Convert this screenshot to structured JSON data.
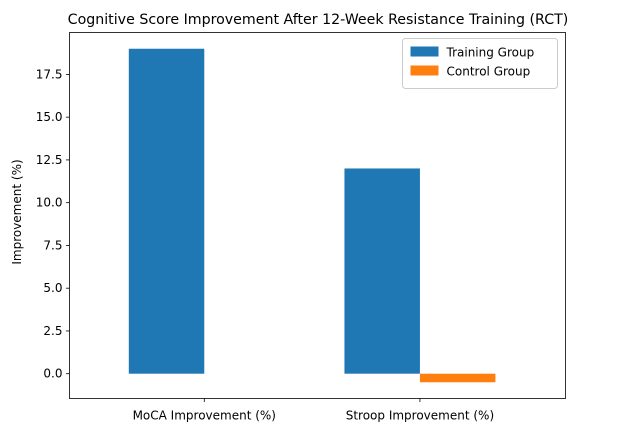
{
  "chart_data": {
    "type": "bar",
    "title": "Cognitive Score Improvement After 12-Week Resistance Training (RCT)",
    "xlabel": "",
    "ylabel": "Improvement (%)",
    "categories": [
      "MoCA Improvement (%)",
      "Stroop Improvement (%)"
    ],
    "series": [
      {
        "name": "Training Group",
        "values": [
          19.0,
          12.0
        ],
        "color": "#1f77b4"
      },
      {
        "name": "Control Group",
        "values": [
          0.0,
          -0.5
        ],
        "color": "#ff7f0e"
      }
    ],
    "ylim": [
      -1.45,
      19.95
    ],
    "yticks": [
      0.0,
      2.5,
      5.0,
      7.5,
      10.0,
      12.5,
      15.0,
      17.5
    ],
    "ytick_labels": [
      "0.0",
      "2.5",
      "5.0",
      "7.5",
      "10.0",
      "12.5",
      "15.0",
      "17.5"
    ],
    "grid": false,
    "legend_position": "top-right"
  }
}
